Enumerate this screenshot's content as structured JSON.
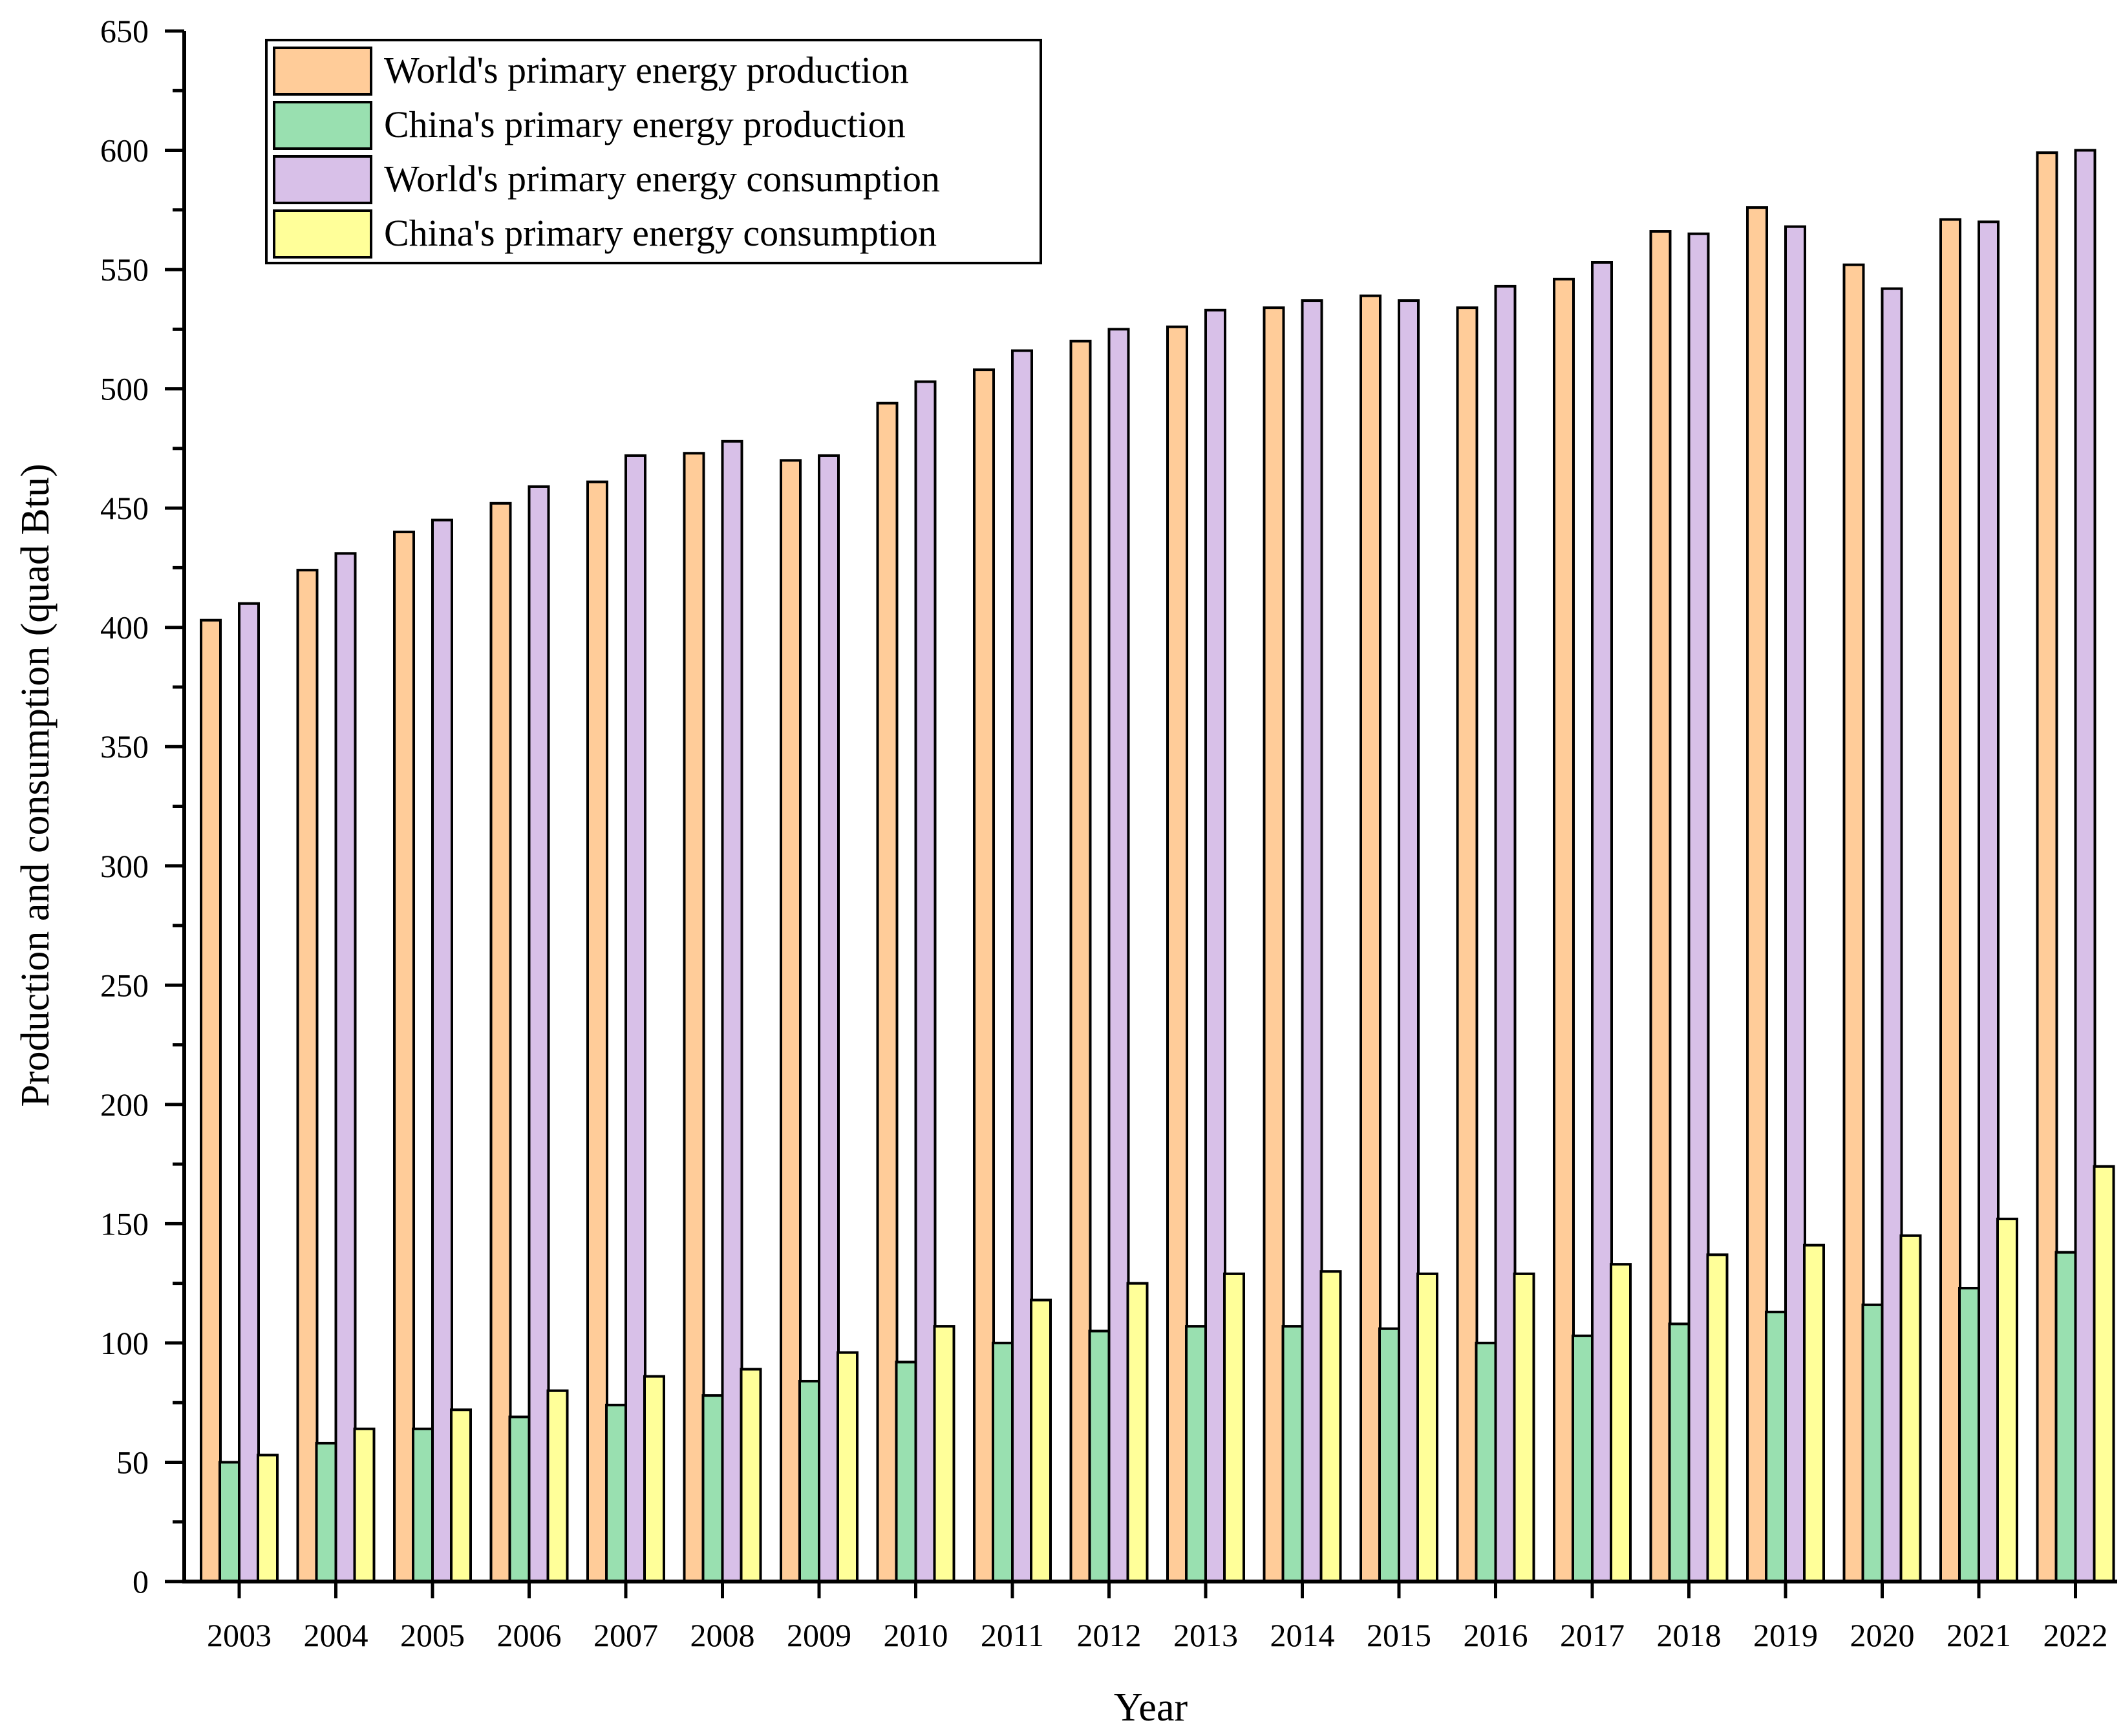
{
  "chart_data": {
    "type": "bar",
    "title": "",
    "xlabel": "Year",
    "ylabel": "Production and consumption (quad Btu)",
    "ylim": [
      0,
      650
    ],
    "yticks": [
      0,
      50,
      100,
      150,
      200,
      250,
      300,
      350,
      400,
      450,
      500,
      550,
      600,
      650
    ],
    "legend_position": "top-left",
    "grid": false,
    "categories": [
      "2003",
      "2004",
      "2005",
      "2006",
      "2007",
      "2008",
      "2009",
      "2010",
      "2011",
      "2012",
      "2013",
      "2014",
      "2015",
      "2016",
      "2017",
      "2018",
      "2019",
      "2020",
      "2021",
      "2022"
    ],
    "series": [
      {
        "name": "World's primary energy production",
        "color": "#FFCC99",
        "values": [
          403,
          424,
          440,
          452,
          461,
          473,
          470,
          494,
          508,
          520,
          526,
          534,
          539,
          534,
          546,
          566,
          576,
          552,
          571,
          599
        ]
      },
      {
        "name": "China's primary energy production",
        "color": "#99E0B0",
        "values": [
          50,
          58,
          64,
          69,
          74,
          78,
          84,
          92,
          100,
          105,
          107,
          107,
          106,
          100,
          103,
          108,
          113,
          116,
          123,
          138
        ]
      },
      {
        "name": "World's primary energy consumption",
        "color": "#D8C0E8",
        "values": [
          410,
          431,
          445,
          459,
          472,
          478,
          472,
          503,
          516,
          525,
          533,
          537,
          537,
          543,
          553,
          565,
          568,
          542,
          570,
          600
        ]
      },
      {
        "name": "China's primary energy consumption",
        "color": "#FFFF99",
        "values": [
          53,
          64,
          72,
          80,
          86,
          89,
          96,
          107,
          118,
          125,
          129,
          130,
          129,
          129,
          133,
          137,
          141,
          145,
          152,
          174
        ]
      }
    ]
  }
}
